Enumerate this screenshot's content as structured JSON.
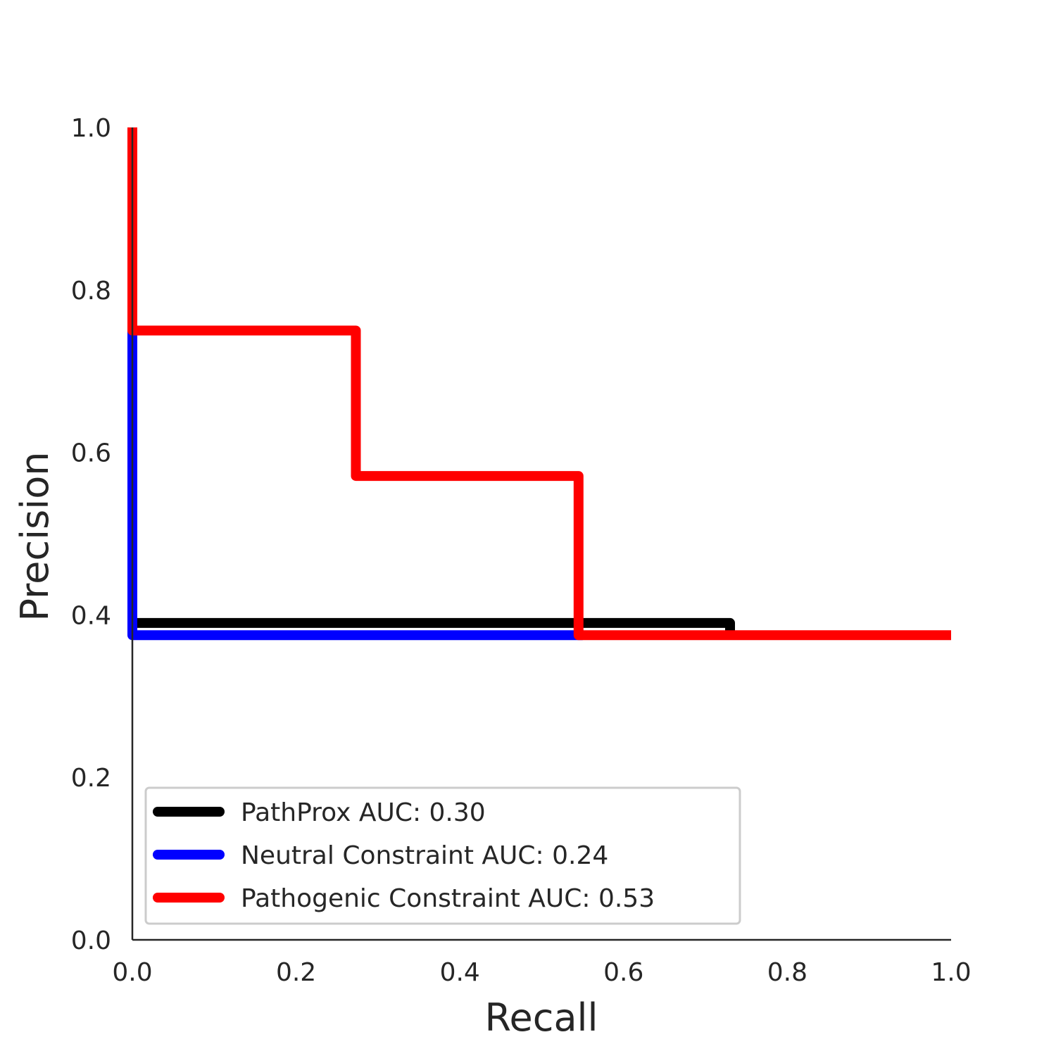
{
  "chart_data": {
    "type": "line",
    "title": "",
    "xlabel": "Recall",
    "ylabel": "Precision",
    "xlim": [
      0,
      1
    ],
    "ylim": [
      0,
      1
    ],
    "x_ticks": [
      "0.0",
      "0.2",
      "0.4",
      "0.6",
      "0.8",
      "1.0"
    ],
    "y_ticks": [
      "0.0",
      "0.2",
      "0.4",
      "0.6",
      "0.8",
      "1.0"
    ],
    "grid": false,
    "legend_position": "lower-left",
    "step_style": "post",
    "series": [
      {
        "name": "PathProx AUC:  0.30",
        "color": "#000000",
        "points": [
          [
            0.0,
            0.39
          ],
          [
            0.73,
            0.39
          ],
          [
            0.73,
            0.375
          ]
        ]
      },
      {
        "name": "Neutral Constraint AUC:  0.24",
        "color": "#0000ff",
        "points": [
          [
            0.0,
            0.75
          ],
          [
            0.0,
            0.375
          ],
          [
            0.55,
            0.375
          ]
        ]
      },
      {
        "name": "Pathogenic Constraint AUC:  0.53",
        "color": "#ff0000",
        "points": [
          [
            0.0,
            1.0
          ],
          [
            0.0,
            0.75
          ],
          [
            0.273,
            0.75
          ],
          [
            0.273,
            0.571
          ],
          [
            0.545,
            0.571
          ],
          [
            0.545,
            0.375
          ],
          [
            1.0,
            0.375
          ]
        ]
      }
    ]
  }
}
